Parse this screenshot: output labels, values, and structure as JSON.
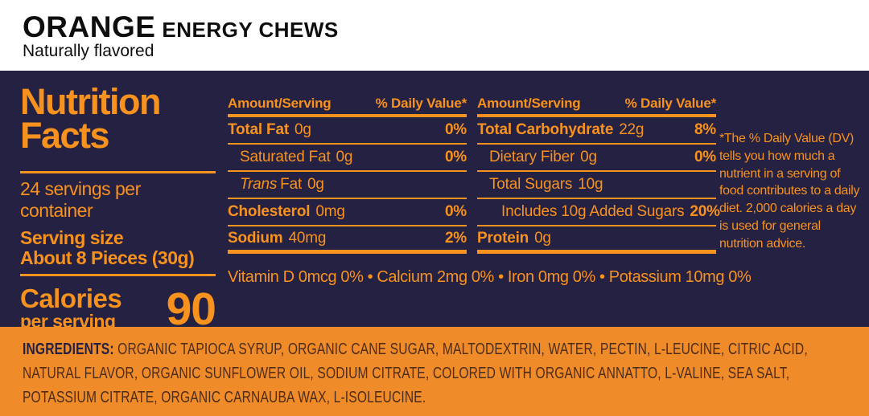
{
  "header": {
    "title_flavor": "ORANGE",
    "title_product": "ENERGY CHEWS",
    "subtitle": "Naturally flavored"
  },
  "panel": {
    "title_line1": "Nutrition",
    "title_line2": "Facts",
    "servings_per_container": "24 servings per container",
    "serving_size_label": "Serving size",
    "serving_size_value": "About 8 Pieces (30g)",
    "calories_label": "Calories",
    "calories_sublabel": "per serving",
    "calories_value": "90",
    "columns": [
      {
        "header_left": "Amount/Serving",
        "header_right": "% Daily Value*",
        "rows": [
          {
            "label": "Total Fat",
            "amount": "0g",
            "dv": "0%"
          },
          {
            "label": "Saturated Fat",
            "amount": "0g",
            "dv": "0%"
          },
          {
            "label_italic": "Trans",
            "label": "Fat",
            "amount": "0g",
            "dv": ""
          },
          {
            "label": "Cholesterol",
            "amount": "0mg",
            "dv": "0%"
          },
          {
            "label": "Sodium",
            "amount": "40mg",
            "dv": "2%"
          }
        ]
      },
      {
        "header_left": "Amount/Serving",
        "header_right": "% Daily Value*",
        "rows": [
          {
            "label": "Total Carbohydrate",
            "amount": "22g",
            "dv": "8%"
          },
          {
            "label": "Dietary Fiber",
            "amount": "0g",
            "dv": "0%"
          },
          {
            "label": "Total Sugars",
            "amount": "10g",
            "dv": ""
          },
          {
            "label": "Includes 10g Added Sugars",
            "amount": "",
            "dv": "20%"
          },
          {
            "label": "Protein",
            "amount": "0g",
            "dv": ""
          }
        ]
      }
    ],
    "micronutrients": "Vitamin D 0mcg 0% • Calcium 2mg 0% • Iron 0mg 0% • Potassium 10mg 0%",
    "footnote": "*The % Daily Value (DV) tells you how much a nutrient in a serving of food contributes to a daily diet. 2,000 calories a day is used for general nutrition advice."
  },
  "ingredients": {
    "label": "INGREDIENTS:",
    "text": "ORGANIC TAPIOCA SYRUP, ORGANIC CANE SUGAR, MALTODEXTRIN, WATER, PECTIN, L-LEUCINE, CITRIC ACID, NATURAL FLAVOR, ORGANIC SUNFLOWER OIL, SODIUM CITRATE, COLORED WITH ORGANIC ANNATTO, L-VALINE, SEA SALT, POTASSIUM CITRATE, ORGANIC CARNAUBA WAX, L-ISOLEUCINE."
  },
  "colors": {
    "panel_background": "#252142",
    "accent_orange": "#F7921E",
    "ingredients_background": "#EF8B28",
    "ingredients_text": "#4E2D1B",
    "header_text": "#0E0E0E"
  }
}
